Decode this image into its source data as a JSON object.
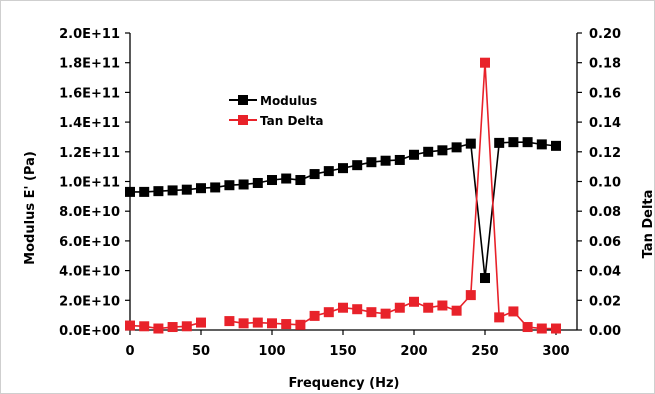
{
  "chart_data": {
    "type": "line",
    "xlabel": "Frequency (Hz)",
    "ylabel": "Modulus E' (Pa)",
    "y2label": "Tan Delta",
    "xlim": [
      0,
      300
    ],
    "ylim": [
      0,
      200000000000
    ],
    "y2lim": [
      0,
      0.2
    ],
    "x_ticks": [
      "0",
      "50",
      "100",
      "150",
      "200",
      "250",
      "300"
    ],
    "y_ticks": [
      "0.0E+00",
      "2.0E+10",
      "4.0E+10",
      "6.0E+10",
      "8.0E+10",
      "1.0E+11",
      "1.2E+11",
      "1.4E+11",
      "1.6E+11",
      "1.8E+11",
      "2.0E+11"
    ],
    "y2_ticks": [
      "0.00",
      "0.02",
      "0.04",
      "0.06",
      "0.08",
      "0.10",
      "0.12",
      "0.14",
      "0.16",
      "0.18",
      "0.20"
    ],
    "grid": false,
    "legend_position": "upper-left",
    "series": [
      {
        "name": "Modulus",
        "axis": "left",
        "color": "#000000",
        "points": [
          [
            0,
            93000000000
          ],
          [
            10,
            93000000000
          ],
          [
            20,
            93500000000
          ],
          [
            30,
            94000000000
          ],
          [
            40,
            94500000000
          ],
          [
            50,
            95500000000
          ],
          [
            60,
            96000000000
          ],
          [
            70,
            97500000000
          ],
          [
            80,
            98000000000
          ],
          [
            90,
            99000000000
          ],
          [
            100,
            101000000000
          ],
          [
            110,
            102000000000
          ],
          [
            120,
            101000000000
          ],
          [
            130,
            105000000000
          ],
          [
            140,
            107000000000
          ],
          [
            150,
            109000000000
          ],
          [
            160,
            111000000000
          ],
          [
            170,
            113000000000
          ],
          [
            180,
            114000000000
          ],
          [
            190,
            114500000000
          ],
          [
            200,
            118000000000
          ],
          [
            210,
            120000000000
          ],
          [
            220,
            121000000000
          ],
          [
            230,
            123000000000
          ],
          [
            240,
            125500000000
          ],
          [
            250,
            35000000000
          ],
          [
            260,
            126000000000
          ],
          [
            270,
            126500000000
          ],
          [
            280,
            126500000000
          ],
          [
            290,
            125000000000
          ],
          [
            300,
            124000000000
          ]
        ]
      },
      {
        "name": "Tan Delta",
        "axis": "right",
        "color": "#e8222a",
        "segments": [
          [
            [
              0,
              0.003
            ],
            [
              10,
              0.0025
            ],
            [
              20,
              0.001
            ],
            [
              30,
              0.002
            ],
            [
              40,
              0.0025
            ],
            [
              50,
              0.005
            ]
          ],
          [
            [
              70,
              0.006
            ],
            [
              80,
              0.0045
            ],
            [
              90,
              0.005
            ],
            [
              100,
              0.0045
            ],
            [
              110,
              0.004
            ],
            [
              120,
              0.0035
            ],
            [
              130,
              0.0095
            ],
            [
              140,
              0.012
            ],
            [
              150,
              0.015
            ],
            [
              160,
              0.014
            ],
            [
              170,
              0.012
            ],
            [
              180,
              0.011
            ],
            [
              190,
              0.015
            ],
            [
              200,
              0.019
            ],
            [
              210,
              0.015
            ],
            [
              220,
              0.0165
            ],
            [
              230,
              0.013
            ],
            [
              240,
              0.0235
            ],
            [
              250,
              0.18
            ],
            [
              260,
              0.0085
            ],
            [
              270,
              0.0125
            ],
            [
              280,
              0.002
            ],
            [
              290,
              0.001
            ],
            [
              300,
              0.001
            ]
          ]
        ]
      }
    ]
  }
}
